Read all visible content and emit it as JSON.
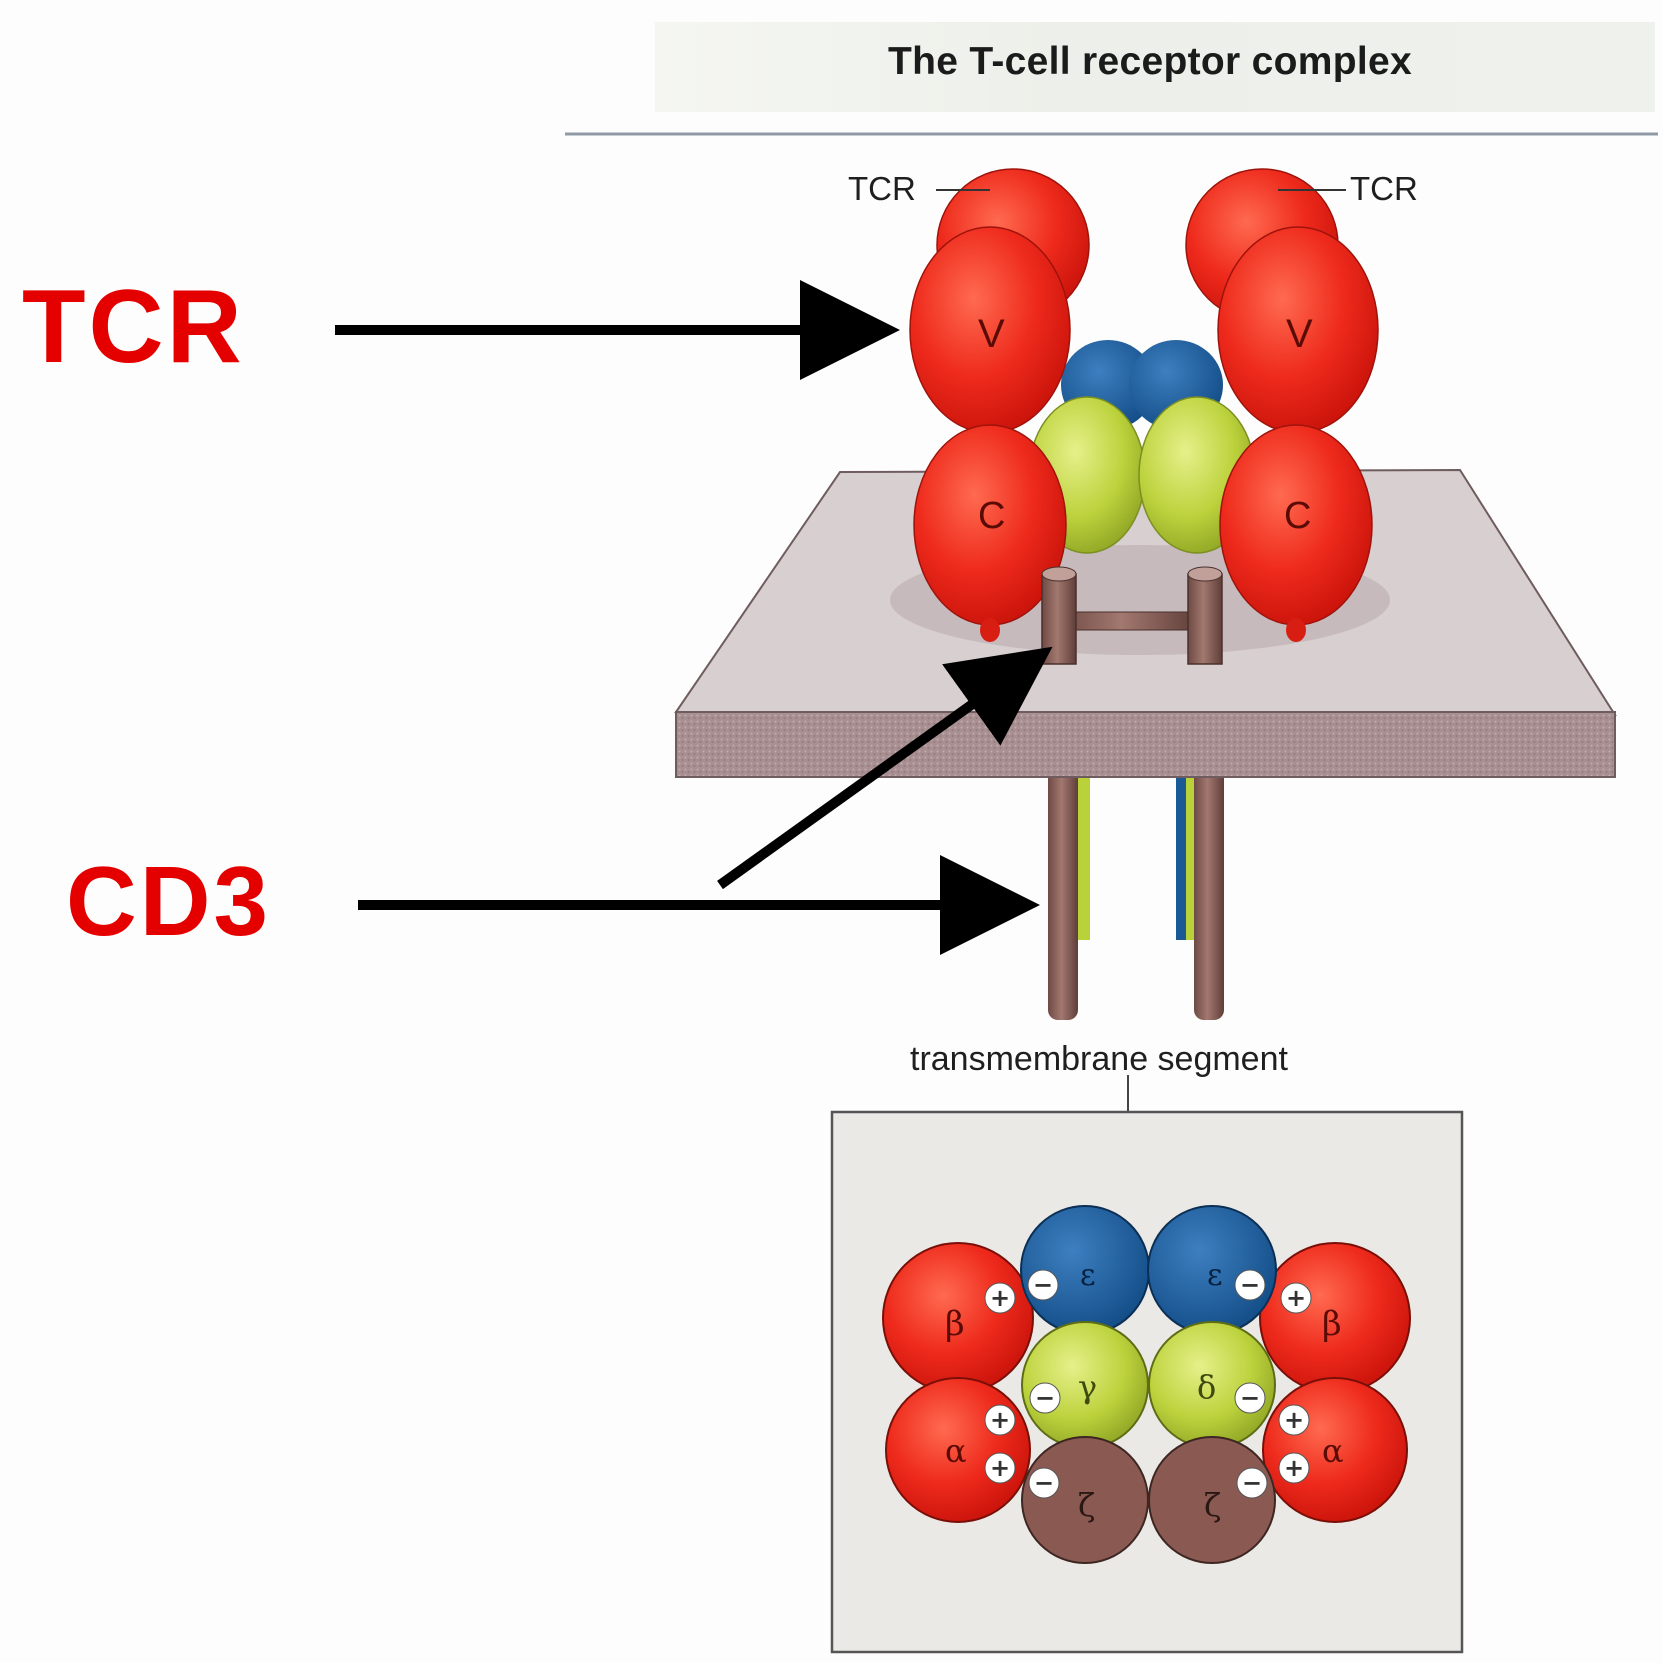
{
  "title": "The T-cell receptor complex",
  "labels": {
    "tcr_big": "TCR",
    "cd3_big": "CD3",
    "tcr_small_left": "TCR",
    "tcr_small_right": "TCR",
    "transmembrane": "transmembrane segment"
  },
  "domains": {
    "v": "V",
    "c": "C"
  },
  "cross_section": {
    "beta": "β",
    "alpha": "α",
    "epsilon": "ε",
    "gamma": "γ",
    "delta": "δ",
    "zeta": "ζ",
    "plus": "+",
    "minus": "−"
  },
  "colors": {
    "label_red": "#e50000",
    "tcr_red": "#ee2a1c",
    "cd3_blue": "#1a5896",
    "cd3_yellow_green": "#b9d23a",
    "zeta_brown": "#8a5a52",
    "membrane": "#cfc5c5"
  }
}
